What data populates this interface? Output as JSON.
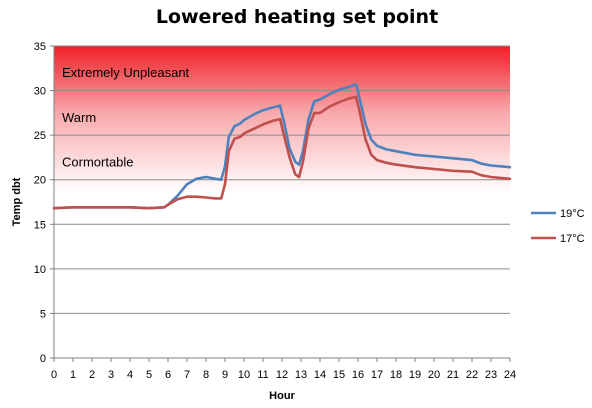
{
  "chart_data": {
    "type": "line",
    "title": "Lowered heating set point",
    "xlabel": "Hour",
    "ylabel": "Temp  dbt",
    "xlim": [
      0,
      24
    ],
    "ylim": [
      0,
      35
    ],
    "x_ticks": [
      "0",
      "1",
      "2",
      "3",
      "4",
      "5",
      "6",
      "7",
      "8",
      "9",
      "10",
      "11",
      "12",
      "13",
      "14",
      "15",
      "16",
      "17",
      "18",
      "19",
      "20",
      "21",
      "22",
      "23",
      "24"
    ],
    "y_ticks": [
      "0",
      "5",
      "10",
      "15",
      "20",
      "25",
      "30",
      "35"
    ],
    "grid": true,
    "legend_position": "right",
    "zones": [
      {
        "label": "Extremely Unpleasant",
        "label_y": 31.5
      },
      {
        "label": "Warm",
        "label_y": 26.5
      },
      {
        "label": "Cormortable",
        "label_y": 21.5
      }
    ],
    "zone_gradient": {
      "top": 35,
      "bottom": 18.5,
      "top_color": "#ee2027",
      "bottom_color": "#ffffff"
    },
    "series": [
      {
        "name": "19°C",
        "color": "#4f81bd",
        "x": [
          0,
          1,
          2,
          3,
          4,
          5,
          5.8,
          6,
          6.5,
          7,
          7.5,
          8,
          8.5,
          8.8,
          9,
          9.2,
          9.5,
          9.8,
          10,
          10.5,
          11,
          11.5,
          11.9,
          12.1,
          12.4,
          12.7,
          12.9,
          13.1,
          13.4,
          13.7,
          14,
          14.5,
          15,
          15.5,
          15.9,
          16.1,
          16.4,
          16.7,
          17,
          17.5,
          18,
          19,
          20,
          21,
          22,
          22.5,
          23,
          23.5,
          24
        ],
        "y": [
          16.8,
          16.9,
          16.9,
          16.9,
          16.9,
          16.8,
          16.9,
          17.2,
          18.2,
          19.5,
          20.1,
          20.3,
          20.1,
          20.0,
          21.5,
          24.8,
          26.0,
          26.3,
          26.7,
          27.3,
          27.8,
          28.1,
          28.3,
          26.5,
          23.5,
          22.0,
          21.7,
          23.2,
          26.8,
          28.8,
          29.0,
          29.6,
          30.1,
          30.4,
          30.7,
          29.0,
          26.2,
          24.5,
          23.8,
          23.4,
          23.2,
          22.8,
          22.6,
          22.4,
          22.2,
          21.8,
          21.6,
          21.5,
          21.4
        ]
      },
      {
        "name": "17°C",
        "color": "#c0504d",
        "x": [
          0,
          1,
          2,
          3,
          4,
          5,
          5.8,
          6,
          6.5,
          7,
          7.5,
          8,
          8.5,
          8.8,
          9,
          9.2,
          9.5,
          9.8,
          10,
          10.5,
          11,
          11.5,
          11.9,
          12.1,
          12.4,
          12.7,
          12.9,
          13.1,
          13.4,
          13.7,
          14,
          14.5,
          15,
          15.5,
          15.9,
          16.1,
          16.4,
          16.7,
          17,
          17.5,
          18,
          19,
          20,
          21,
          22,
          22.5,
          23,
          23.5,
          24
        ],
        "y": [
          16.8,
          16.9,
          16.9,
          16.9,
          16.9,
          16.8,
          16.9,
          17.2,
          17.8,
          18.1,
          18.1,
          18.0,
          17.9,
          17.9,
          19.5,
          23.2,
          24.6,
          24.8,
          25.2,
          25.7,
          26.2,
          26.6,
          26.8,
          25.0,
          22.5,
          20.6,
          20.3,
          22.0,
          25.8,
          27.5,
          27.5,
          28.2,
          28.7,
          29.1,
          29.3,
          27.5,
          24.5,
          22.8,
          22.2,
          21.9,
          21.7,
          21.4,
          21.2,
          21.0,
          20.9,
          20.5,
          20.3,
          20.2,
          20.1
        ]
      }
    ]
  }
}
